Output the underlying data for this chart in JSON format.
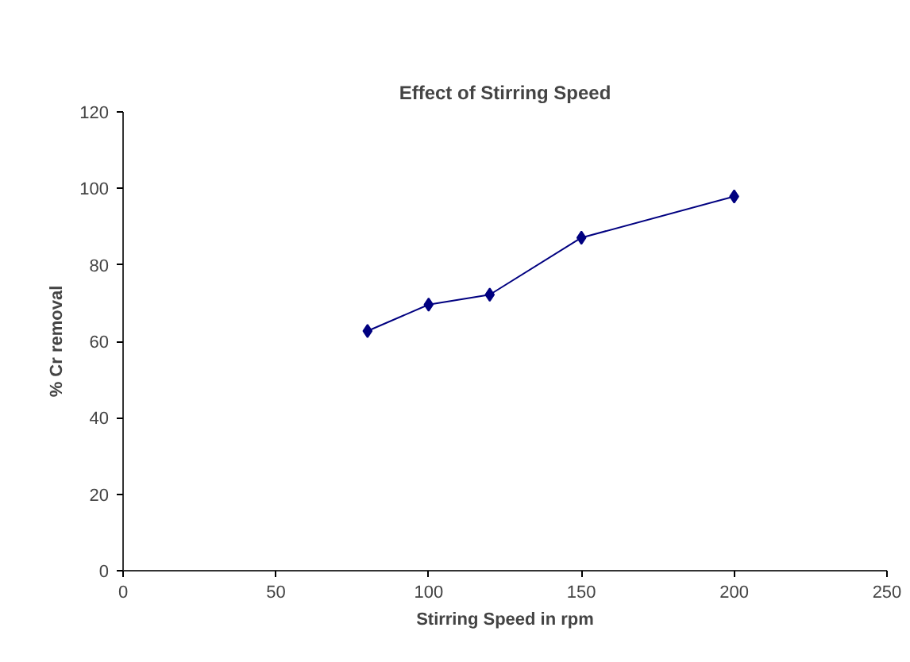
{
  "chart_data": {
    "type": "line",
    "title": "Effect of Stirring Speed",
    "xlabel": "Stirring Speed in rpm",
    "ylabel": "% Cr removal",
    "x": [
      80,
      100,
      120,
      150,
      200
    ],
    "series": [
      {
        "color": "#000080",
        "values": [
          62.7,
          69.6,
          72.2,
          87.1,
          97.9
        ]
      }
    ],
    "xlim": [
      0,
      250
    ],
    "xticks": [
      0,
      50,
      100,
      150,
      200,
      250
    ],
    "ylim": [
      0,
      120
    ],
    "yticks": [
      0,
      20,
      40,
      60,
      80,
      100,
      120
    ],
    "marker": "diamond",
    "line_style": "solid",
    "grid": false
  }
}
